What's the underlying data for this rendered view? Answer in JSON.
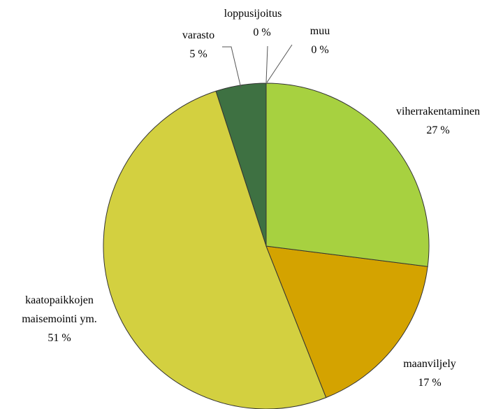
{
  "chart_data": {
    "type": "pie",
    "categories": [
      "viherrakentaminen",
      "maanviljely",
      "kaatopaikkojen maisemointi ym.",
      "varasto",
      "loppusijoitus",
      "muu"
    ],
    "values": [
      27,
      17,
      51,
      5,
      0,
      0
    ],
    "value_labels": [
      "27 %",
      "17 %",
      "51 %",
      "5 %",
      "0 %",
      "0 %"
    ],
    "colors": [
      "#a7d140",
      "#d4a300",
      "#d3d040",
      "#3e7142",
      "#3e7142",
      "#3e7142"
    ]
  }
}
